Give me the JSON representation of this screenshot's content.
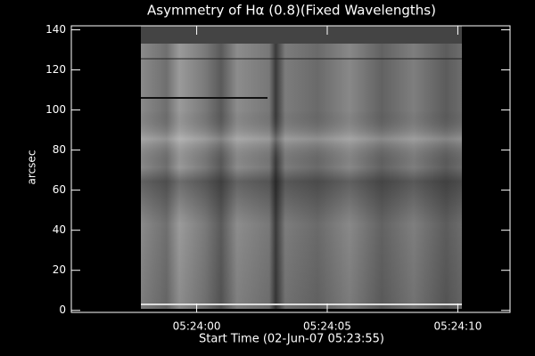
{
  "chart_data": {
    "type": "image",
    "title": "Asymmetry of Hα (0.8)(Fixed Wavelengths)",
    "x_label": "Start Time (02-Jun-07 05:23:55)",
    "y_label": "arcsec",
    "xlim": [
      0.2,
      17
    ],
    "xticks": [
      {
        "value": 5,
        "label": "05:24:00"
      },
      {
        "value": 10,
        "label": "05:24:05"
      },
      {
        "value": 15,
        "label": "05:24:10"
      }
    ],
    "ylim": [
      -1,
      142
    ],
    "yticks": [
      0,
      20,
      40,
      60,
      80,
      100,
      120,
      140
    ],
    "color": "#ffffff"
  }
}
